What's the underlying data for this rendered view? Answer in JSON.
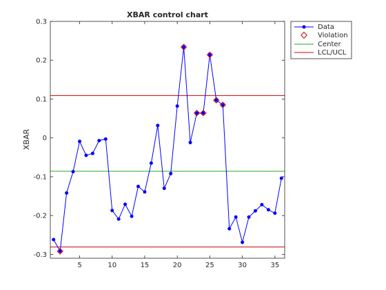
{
  "chart_data": {
    "type": "line",
    "title": "XBAR control chart",
    "xlabel": "",
    "ylabel": "XBAR",
    "xlim": [
      0.5,
      36.5
    ],
    "ylim": [
      -0.31,
      0.3
    ],
    "xticks": [
      5,
      10,
      15,
      20,
      25,
      30,
      35
    ],
    "yticks": [
      -0.3,
      -0.2,
      -0.1,
      0,
      0.1,
      0.2,
      0.3
    ],
    "xtick_labels": [
      "5",
      "10",
      "15",
      "20",
      "25",
      "30",
      "35"
    ],
    "ytick_labels": [
      "-0.3",
      "-0.2",
      "-0.1",
      "0",
      "0.1",
      "0.2",
      "0.3"
    ],
    "grid": false,
    "legend_position": "outside-top-right",
    "colors": {
      "data": "#0000ff",
      "violation": "#cc0000",
      "center": "#22aa22",
      "limits": "#cc0000"
    },
    "series": [
      {
        "name": "Data",
        "x": [
          1,
          2,
          3,
          4,
          5,
          6,
          7,
          8,
          9,
          10,
          11,
          12,
          13,
          14,
          15,
          16,
          17,
          18,
          19,
          20,
          21,
          22,
          23,
          24,
          25,
          26,
          27,
          28,
          29,
          30,
          31,
          32,
          33,
          34,
          35,
          36
        ],
        "y": [
          -0.262,
          -0.292,
          -0.142,
          -0.087,
          -0.009,
          -0.045,
          -0.04,
          -0.007,
          -0.003,
          -0.187,
          -0.209,
          -0.171,
          -0.202,
          -0.125,
          -0.139,
          -0.065,
          0.032,
          -0.13,
          -0.092,
          0.082,
          0.234,
          -0.012,
          0.064,
          0.064,
          0.214,
          0.097,
          0.085,
          -0.234,
          -0.204,
          -0.269,
          -0.204,
          -0.188,
          -0.172,
          -0.185,
          -0.194,
          -0.104
        ]
      },
      {
        "name": "Violation",
        "x": [
          2,
          21,
          23,
          24,
          25,
          26,
          27
        ],
        "y": [
          -0.292,
          0.234,
          0.064,
          0.064,
          0.214,
          0.097,
          0.085
        ]
      },
      {
        "name": "Center",
        "y": -0.086
      },
      {
        "name": "LCL/UCL",
        "lcl": -0.281,
        "ucl": 0.109
      }
    ]
  }
}
